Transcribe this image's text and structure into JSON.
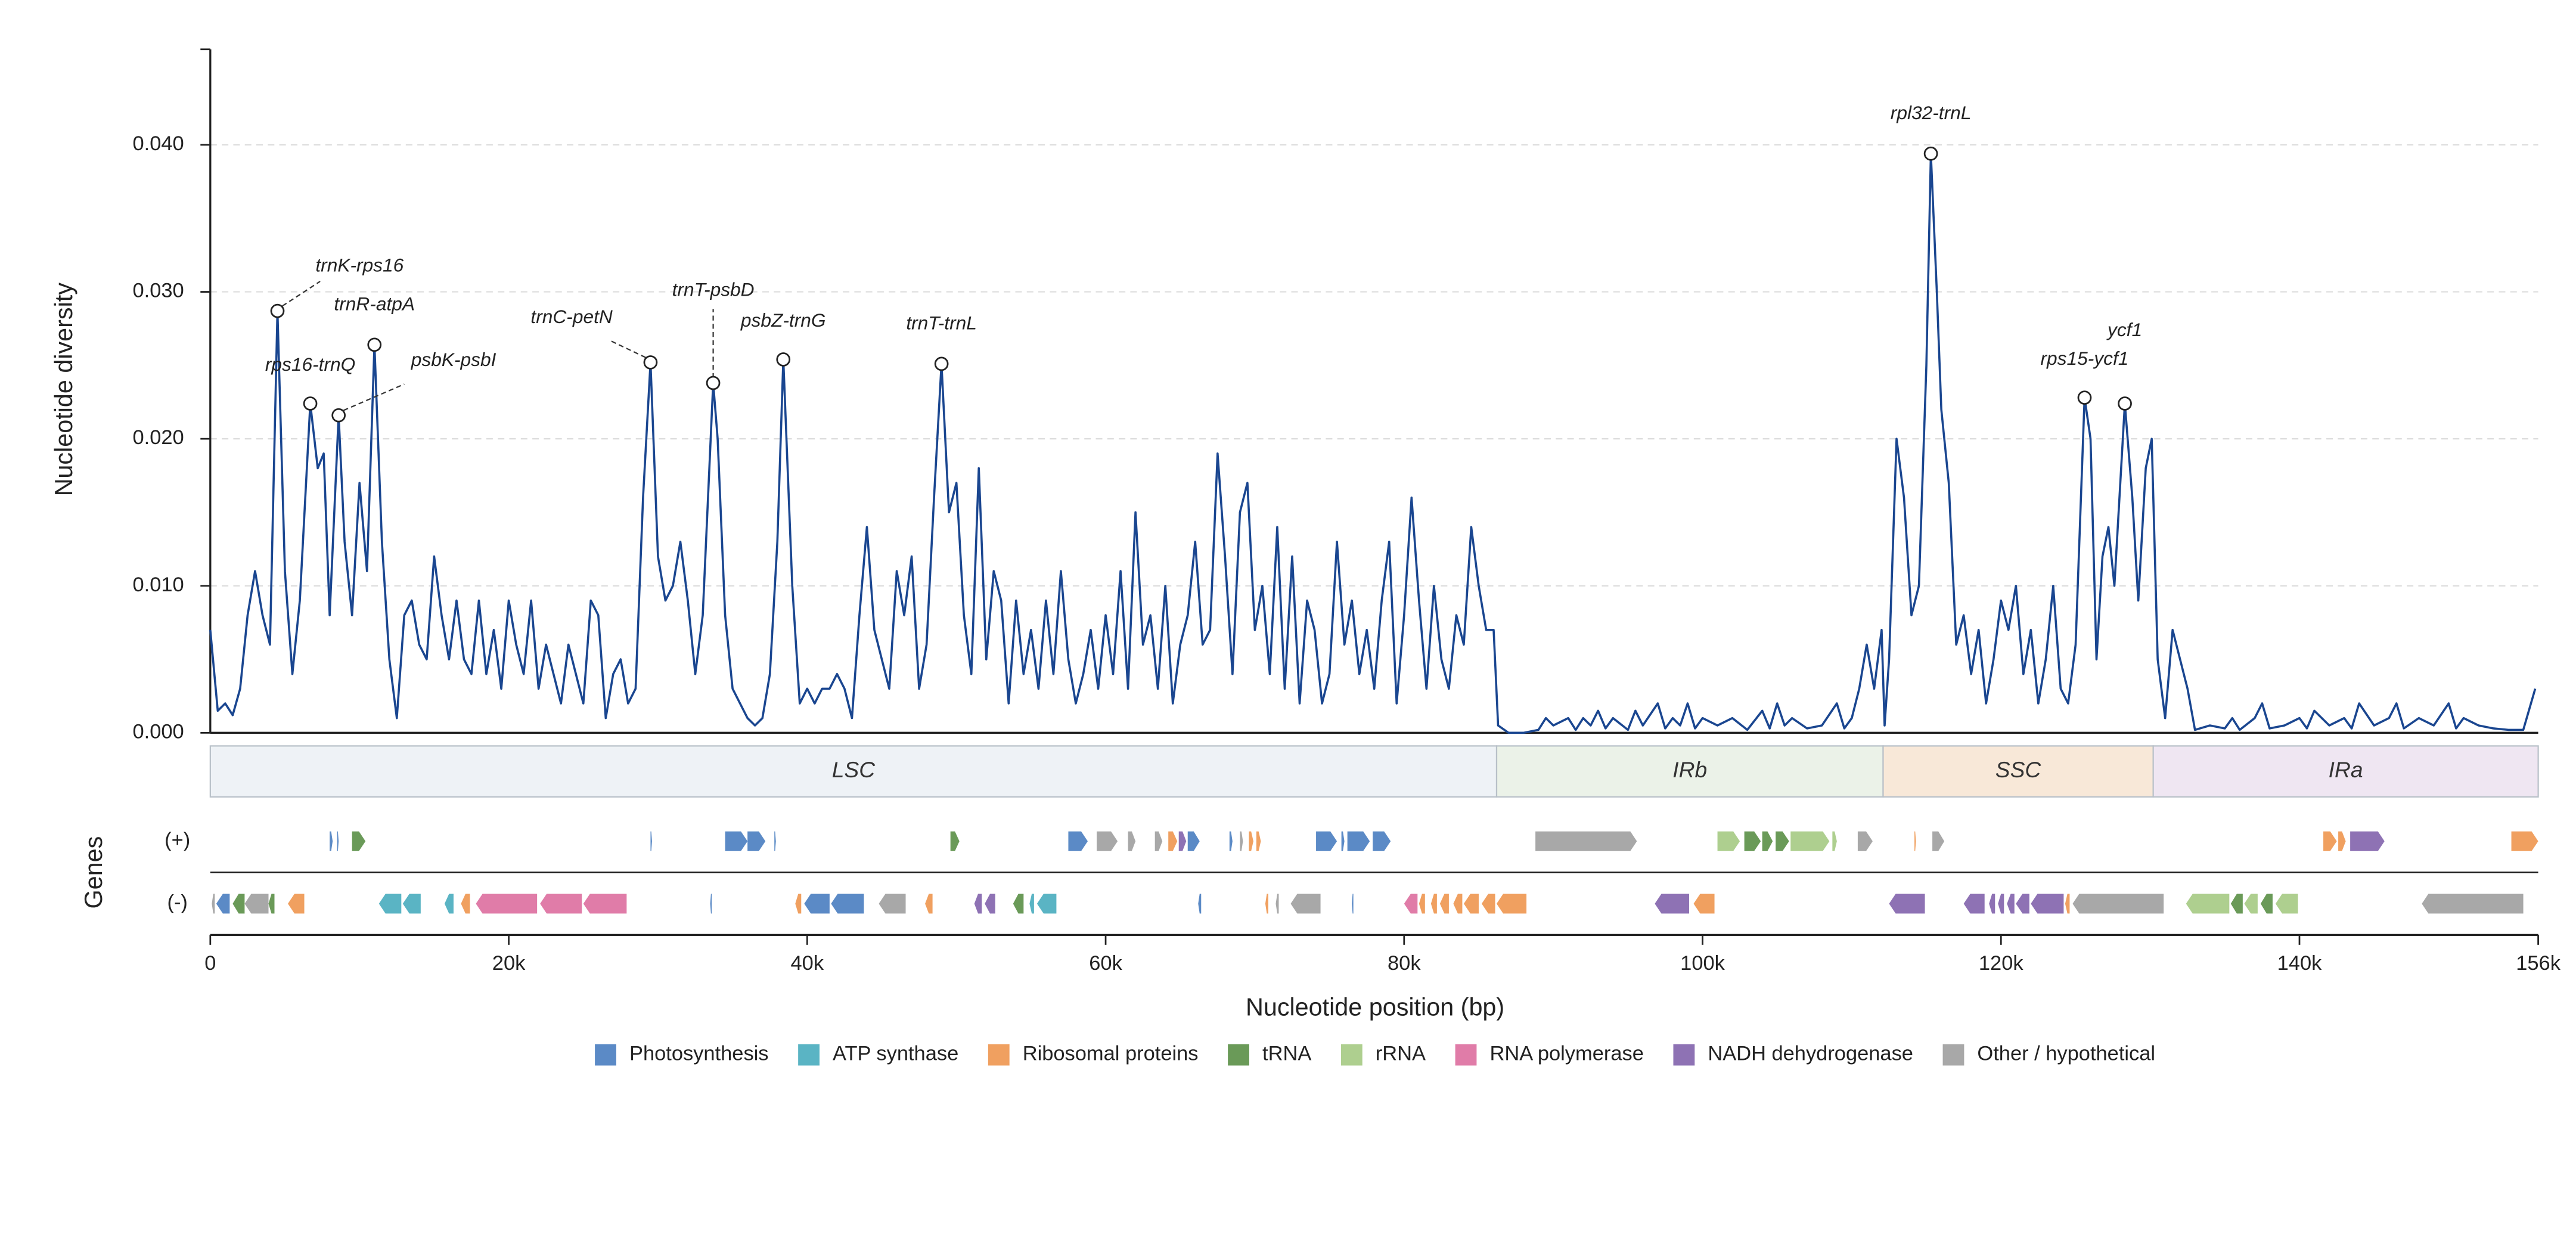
{
  "chart_data": {
    "type": "line",
    "ylabel": "Nucleotide diversity",
    "xlabel": "Nucleotide position (bp)",
    "xlim": [
      0,
      156000
    ],
    "ylim": [
      0,
      0.0465
    ],
    "xticks": [
      0,
      {
        "value": 20000,
        "label": "20k"
      },
      {
        "value": 40000,
        "label": "40k"
      },
      {
        "value": 60000,
        "label": "60k"
      },
      {
        "value": 80000,
        "label": "80k"
      },
      {
        "value": 100000,
        "label": "100k"
      },
      {
        "value": 120000,
        "label": "120k"
      },
      {
        "value": 140000,
        "label": "140k"
      },
      {
        "value": 156000,
        "label": "156k"
      }
    ],
    "yticks": [
      {
        "value": 0,
        "label": "0.000"
      },
      {
        "value": 0.01,
        "label": "0.010"
      },
      {
        "value": 0.02,
        "label": "0.020"
      },
      {
        "value": 0.03,
        "label": "0.030"
      },
      {
        "value": 0.04,
        "label": "0.040"
      }
    ],
    "grid": true,
    "x": [
      0,
      500,
      1000,
      1500,
      2000,
      2500,
      3000,
      3500,
      4000,
      4500,
      5000,
      5500,
      6000,
      6700,
      7200,
      7600,
      8000,
      8600,
      9000,
      9500,
      10000,
      10500,
      11000,
      11500,
      12000,
      12500,
      13000,
      13500,
      14000,
      14500,
      15000,
      15500,
      16000,
      16500,
      17000,
      17500,
      18000,
      18500,
      19000,
      19500,
      20000,
      20500,
      21000,
      21500,
      22000,
      22500,
      23000,
      23500,
      24000,
      24500,
      25000,
      25500,
      26000,
      26500,
      27000,
      27500,
      28000,
      28500,
      29000,
      29500,
      30000,
      30500,
      31000,
      31500,
      32000,
      32500,
      33000,
      33700,
      34000,
      34500,
      35000,
      35500,
      36000,
      36500,
      37000,
      37500,
      38000,
      38400,
      39000,
      39500,
      40000,
      40500,
      41000,
      41500,
      42000,
      42500,
      43000,
      43500,
      44000,
      44500,
      45000,
      45500,
      46000,
      46500,
      47000,
      47500,
      48000,
      48500,
      49000,
      49500,
      50000,
      50500,
      51000,
      51500,
      52000,
      52500,
      53000,
      53500,
      54000,
      54500,
      55000,
      55500,
      56000,
      56500,
      57000,
      57500,
      58000,
      58500,
      59000,
      59500,
      60000,
      60500,
      61000,
      61500,
      62000,
      62500,
      63000,
      63500,
      64000,
      64500,
      65000,
      65500,
      66000,
      66500,
      67000,
      67500,
      68000,
      68500,
      69000,
      69500,
      70000,
      70500,
      71000,
      71500,
      72000,
      72500,
      73000,
      73500,
      74000,
      74500,
      75000,
      75500,
      76000,
      76500,
      77000,
      77500,
      78000,
      78500,
      79000,
      79500,
      80000,
      80500,
      81000,
      81500,
      82000,
      82500,
      83000,
      83500,
      84000,
      84500,
      85000,
      85500,
      86000,
      86300,
      87000,
      88000,
      89000,
      89500,
      90000,
      91000,
      91500,
      92000,
      92500,
      93000,
      93500,
      94000,
      95000,
      95500,
      96000,
      97000,
      97500,
      98000,
      98500,
      99000,
      99500,
      100000,
      101000,
      102000,
      103000,
      104000,
      104500,
      105000,
      105500,
      106000,
      107000,
      108000,
      109000,
      109500,
      110000,
      110500,
      111000,
      111500,
      112000,
      112200,
      112500,
      113000,
      113500,
      114000,
      114500,
      115000,
      115300,
      115700,
      116000,
      116500,
      117000,
      117500,
      118000,
      118500,
      119000,
      119500,
      120000,
      120500,
      121000,
      121500,
      122000,
      122500,
      123000,
      123500,
      124000,
      124500,
      125000,
      125600,
      126000,
      126400,
      126800,
      127200,
      127600,
      128300,
      128800,
      129200,
      129700,
      130100,
      130500,
      131000,
      131500,
      132000,
      132500,
      133000,
      134000,
      135000,
      135500,
      136000,
      137000,
      137500,
      138000,
      139000,
      140000,
      140500,
      141000,
      142000,
      143000,
      143500,
      144000,
      145000,
      146000,
      146500,
      147000,
      148000,
      149000,
      150000,
      150500,
      151000,
      152000,
      153000,
      154000,
      155000,
      155800
    ],
    "series": [
      {
        "color": "#1a4690",
        "values": [
          0.007,
          0.0015,
          0.002,
          0.0012,
          0.003,
          0.008,
          0.011,
          0.008,
          0.006,
          0.0287,
          0.011,
          0.004,
          0.009,
          0.0224,
          0.018,
          0.019,
          0.008,
          0.0216,
          0.013,
          0.008,
          0.017,
          0.011,
          0.0264,
          0.013,
          0.005,
          0.001,
          0.008,
          0.009,
          0.006,
          0.005,
          0.012,
          0.008,
          0.005,
          0.009,
          0.005,
          0.004,
          0.009,
          0.004,
          0.007,
          0.003,
          0.009,
          0.006,
          0.004,
          0.009,
          0.003,
          0.006,
          0.004,
          0.002,
          0.006,
          0.004,
          0.002,
          0.009,
          0.008,
          0.001,
          0.004,
          0.005,
          0.002,
          0.003,
          0.016,
          0.0252,
          0.012,
          0.009,
          0.01,
          0.013,
          0.009,
          0.004,
          0.008,
          0.0238,
          0.02,
          0.008,
          0.003,
          0.002,
          0.001,
          0.0005,
          0.001,
          0.004,
          0.013,
          0.0254,
          0.01,
          0.002,
          0.003,
          0.002,
          0.003,
          0.003,
          0.004,
          0.003,
          0.001,
          0.008,
          0.014,
          0.007,
          0.005,
          0.003,
          0.011,
          0.008,
          0.012,
          0.003,
          0.006,
          0.016,
          0.0251,
          0.015,
          0.017,
          0.008,
          0.004,
          0.018,
          0.005,
          0.011,
          0.009,
          0.002,
          0.009,
          0.004,
          0.007,
          0.003,
          0.009,
          0.004,
          0.011,
          0.005,
          0.002,
          0.004,
          0.007,
          0.003,
          0.008,
          0.004,
          0.011,
          0.003,
          0.015,
          0.006,
          0.008,
          0.003,
          0.01,
          0.002,
          0.006,
          0.008,
          0.013,
          0.006,
          0.007,
          0.019,
          0.012,
          0.004,
          0.015,
          0.017,
          0.007,
          0.01,
          0.004,
          0.014,
          0.003,
          0.012,
          0.002,
          0.009,
          0.007,
          0.002,
          0.004,
          0.013,
          0.006,
          0.009,
          0.004,
          0.007,
          0.003,
          0.009,
          0.013,
          0.002,
          0.008,
          0.016,
          0.009,
          0.003,
          0.01,
          0.005,
          0.003,
          0.008,
          0.006,
          0.014,
          0.01,
          0.007,
          0.007,
          0.0005,
          0,
          0,
          0.0002,
          0.001,
          0.0005,
          0.001,
          0.0002,
          0.001,
          0.0005,
          0.0015,
          0.0003,
          0.001,
          0.0002,
          0.0015,
          0.0005,
          0.002,
          0.0003,
          0.001,
          0.0005,
          0.002,
          0.0003,
          0.001,
          0.0005,
          0.001,
          0.0002,
          0.0015,
          0.0003,
          0.002,
          0.0005,
          0.001,
          0.0003,
          0.0005,
          0.002,
          0.0003,
          0.001,
          0.003,
          0.006,
          0.003,
          0.007,
          0.0005,
          0.005,
          0.02,
          0.016,
          0.008,
          0.01,
          0.025,
          0.0394,
          0.03,
          0.022,
          0.017,
          0.006,
          0.008,
          0.004,
          0.007,
          0.002,
          0.005,
          0.009,
          0.007,
          0.01,
          0.004,
          0.007,
          0.002,
          0.005,
          0.01,
          0.003,
          0.002,
          0.006,
          0.0228,
          0.02,
          0.005,
          0.012,
          0.014,
          0.01,
          0.0224,
          0.016,
          0.009,
          0.018,
          0.02,
          0.005,
          0.001,
          0.007,
          0.005,
          0.003,
          0.0002,
          0.0005,
          0.0003,
          0.001,
          0.0002,
          0.001,
          0.002,
          0.0003,
          0.0005,
          0.001,
          0.0003,
          0.0015,
          0.0005,
          0.001,
          0.0003,
          0.002,
          0.0005,
          0.001,
          0.002,
          0.0003,
          0.001,
          0.0005,
          0.002,
          0.0003,
          0.001,
          0.0005,
          0.0003,
          0.0002,
          0.0002,
          0.003
        ]
      }
    ],
    "annotations": [
      {
        "text": "trnK-rps16",
        "x": 4500,
        "y": 0.0287
      },
      {
        "text": "trnR-atpA",
        "x": 11000,
        "y": 0.0264
      },
      {
        "text": "rps16-trnQ",
        "x": 6700,
        "y": 0.0224
      },
      {
        "text": "psbK-psbI",
        "x": 8600,
        "y": 0.0216
      },
      {
        "text": "trnC-petN",
        "x": 29500,
        "y": 0.0252
      },
      {
        "text": "trnT-psbD",
        "x": 33700,
        "y": 0.0238
      },
      {
        "text": "psbZ-trnG",
        "x": 38400,
        "y": 0.0254
      },
      {
        "text": "trnT-trnL",
        "x": 49000,
        "y": 0.0251
      },
      {
        "text": "rpl32-trnL",
        "x": 115300,
        "y": 0.0394
      },
      {
        "text": "rps15-ycf1",
        "x": 125600,
        "y": 0.0228
      },
      {
        "text": "ycf1",
        "x": 128300,
        "y": 0.0224
      }
    ],
    "regions": [
      {
        "name": "LSC",
        "start": 0,
        "end": 86200,
        "color": "#eef2f6"
      },
      {
        "name": "IRb",
        "start": 86200,
        "end": 112100,
        "color": "#ebf2e8"
      },
      {
        "name": "SSC",
        "start": 112100,
        "end": 130200,
        "color": "#f8e8d8"
      },
      {
        "name": "IRa",
        "start": 130200,
        "end": 156000,
        "color": "#efe6f2"
      }
    ],
    "genes_label": "Genes",
    "gene_groups": [
      {
        "name": "Photosynthesis",
        "color": "#5b8ac6"
      },
      {
        "name": "ATP synthase",
        "color": "#5ab4c4"
      },
      {
        "name": "Ribosomal proteins",
        "color": "#f0a060"
      },
      {
        "name": "tRNA",
        "color": "#6a9a58"
      },
      {
        "name": "rRNA",
        "color": "#aecf8f"
      },
      {
        "name": "RNA polymerase",
        "color": "#e07ca8"
      },
      {
        "name": "NADH dehydrogenase",
        "color": "#8e72b4"
      },
      {
        "name": "Other / hypothetical",
        "color": "#a8a8a8"
      }
    ],
    "genes": [
      {
        "strand": "(+)",
        "blocks": [
          [
            8000,
            8200,
            0
          ],
          [
            8500,
            8600,
            0
          ],
          [
            9500,
            10400,
            3
          ],
          [
            29500,
            29600,
            0
          ],
          [
            34500,
            36000,
            0
          ],
          [
            36000,
            37200,
            0
          ],
          [
            37800,
            37900,
            0
          ],
          [
            49600,
            50200,
            3
          ],
          [
            57500,
            58800,
            0
          ],
          [
            59400,
            60800,
            7
          ],
          [
            61500,
            62000,
            7
          ],
          [
            63300,
            63800,
            7
          ],
          [
            64200,
            64800,
            2
          ],
          [
            64900,
            65400,
            6
          ],
          [
            65500,
            66300,
            0
          ],
          [
            68300,
            68500,
            0
          ],
          [
            69000,
            69200,
            7
          ],
          [
            69600,
            69900,
            2
          ],
          [
            70100,
            70400,
            2
          ],
          [
            74100,
            75500,
            0
          ],
          [
            75800,
            76000,
            0
          ],
          [
            76200,
            77700,
            0
          ],
          [
            77900,
            79100,
            0
          ],
          [
            88800,
            95600,
            7
          ],
          [
            101000,
            102500,
            4
          ],
          [
            102800,
            103900,
            3
          ],
          [
            104000,
            104700,
            3
          ],
          [
            104900,
            105800,
            3
          ],
          [
            105900,
            108500,
            4
          ],
          [
            108700,
            109000,
            4
          ],
          [
            110400,
            111400,
            7
          ],
          [
            114200,
            114300,
            2
          ],
          [
            115400,
            116200,
            7
          ],
          [
            141600,
            142500,
            2
          ],
          [
            142600,
            143100,
            2
          ],
          [
            143400,
            145700,
            6
          ],
          [
            154200,
            156000,
            2
          ]
        ]
      },
      {
        "strand": "(-)",
        "blocks": [
          [
            100,
            300,
            7
          ],
          [
            400,
            1300,
            0
          ],
          [
            1500,
            2300,
            3
          ],
          [
            2300,
            3900,
            7
          ],
          [
            3900,
            4300,
            3
          ],
          [
            5200,
            6300,
            2
          ],
          [
            11300,
            12800,
            1
          ],
          [
            12900,
            14100,
            1
          ],
          [
            15700,
            16300,
            1
          ],
          [
            16800,
            17400,
            2
          ],
          [
            17800,
            21900,
            5
          ],
          [
            22100,
            24900,
            5
          ],
          [
            25000,
            27900,
            5
          ],
          [
            33500,
            33600,
            0
          ],
          [
            39200,
            39600,
            2
          ],
          [
            39800,
            41500,
            0
          ],
          [
            41600,
            43800,
            0
          ],
          [
            44800,
            46600,
            7
          ],
          [
            47900,
            48400,
            2
          ],
          [
            51200,
            51700,
            6
          ],
          [
            51900,
            52600,
            6
          ],
          [
            53800,
            54500,
            3
          ],
          [
            54900,
            55200,
            1
          ],
          [
            55400,
            56700,
            1
          ],
          [
            66200,
            66400,
            0
          ],
          [
            70700,
            70900,
            2
          ],
          [
            71400,
            71600,
            7
          ],
          [
            72400,
            74400,
            7
          ],
          [
            76500,
            76600,
            0
          ],
          [
            80000,
            80900,
            5
          ],
          [
            81000,
            81400,
            2
          ],
          [
            81800,
            82200,
            2
          ],
          [
            82400,
            83000,
            2
          ],
          [
            83300,
            83900,
            2
          ],
          [
            84000,
            85000,
            2
          ],
          [
            85200,
            86100,
            2
          ],
          [
            86200,
            88200,
            2
          ],
          [
            96800,
            99100,
            6
          ],
          [
            99400,
            100800,
            2
          ],
          [
            112500,
            114900,
            6
          ],
          [
            117500,
            118900,
            6
          ],
          [
            119200,
            119600,
            6
          ],
          [
            119800,
            120200,
            6
          ],
          [
            120400,
            120900,
            6
          ],
          [
            121000,
            121900,
            6
          ],
          [
            122000,
            124200,
            6
          ],
          [
            124300,
            124600,
            2
          ],
          [
            124800,
            130900,
            7
          ],
          [
            132400,
            135300,
            4
          ],
          [
            135400,
            136200,
            3
          ],
          [
            136300,
            137200,
            4
          ],
          [
            137400,
            138200,
            3
          ],
          [
            138400,
            139900,
            4
          ],
          [
            148200,
            155000,
            7
          ]
        ]
      }
    ]
  }
}
